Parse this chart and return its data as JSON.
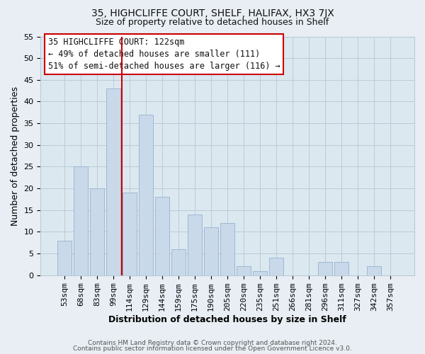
{
  "title": "35, HIGHCLIFFE COURT, SHELF, HALIFAX, HX3 7JX",
  "subtitle": "Size of property relative to detached houses in Shelf",
  "xlabel": "Distribution of detached houses by size in Shelf",
  "ylabel": "Number of detached properties",
  "bar_labels": [
    "53sqm",
    "68sqm",
    "83sqm",
    "99sqm",
    "114sqm",
    "129sqm",
    "144sqm",
    "159sqm",
    "175sqm",
    "190sqm",
    "205sqm",
    "220sqm",
    "235sqm",
    "251sqm",
    "266sqm",
    "281sqm",
    "296sqm",
    "311sqm",
    "327sqm",
    "342sqm",
    "357sqm"
  ],
  "bar_values": [
    8,
    25,
    20,
    43,
    19,
    37,
    18,
    6,
    14,
    11,
    12,
    2,
    1,
    4,
    0,
    0,
    3,
    3,
    0,
    2,
    0
  ],
  "bar_color": "#c9d9ea",
  "bar_edge_color": "#9db8d2",
  "vline_color": "#cc0000",
  "vline_pos": 3.5,
  "ylim": [
    0,
    55
  ],
  "yticks": [
    0,
    5,
    10,
    15,
    20,
    25,
    30,
    35,
    40,
    45,
    50,
    55
  ],
  "annotation_title": "35 HIGHCLIFFE COURT: 122sqm",
  "annotation_line1": "← 49% of detached houses are smaller (111)",
  "annotation_line2": "51% of semi-detached houses are larger (116) →",
  "footer1": "Contains HM Land Registry data © Crown copyright and database right 2024.",
  "footer2": "Contains public sector information licensed under the Open Government Licence v3.0.",
  "background_color": "#e8eef4",
  "plot_bg_color": "#dce8f0",
  "grid_color": "#b8ccd8",
  "title_fontsize": 10,
  "subtitle_fontsize": 9,
  "xlabel_fontsize": 9,
  "ylabel_fontsize": 9,
  "tick_fontsize": 8,
  "annotation_fontsize": 8.5,
  "footer_fontsize": 6.5
}
